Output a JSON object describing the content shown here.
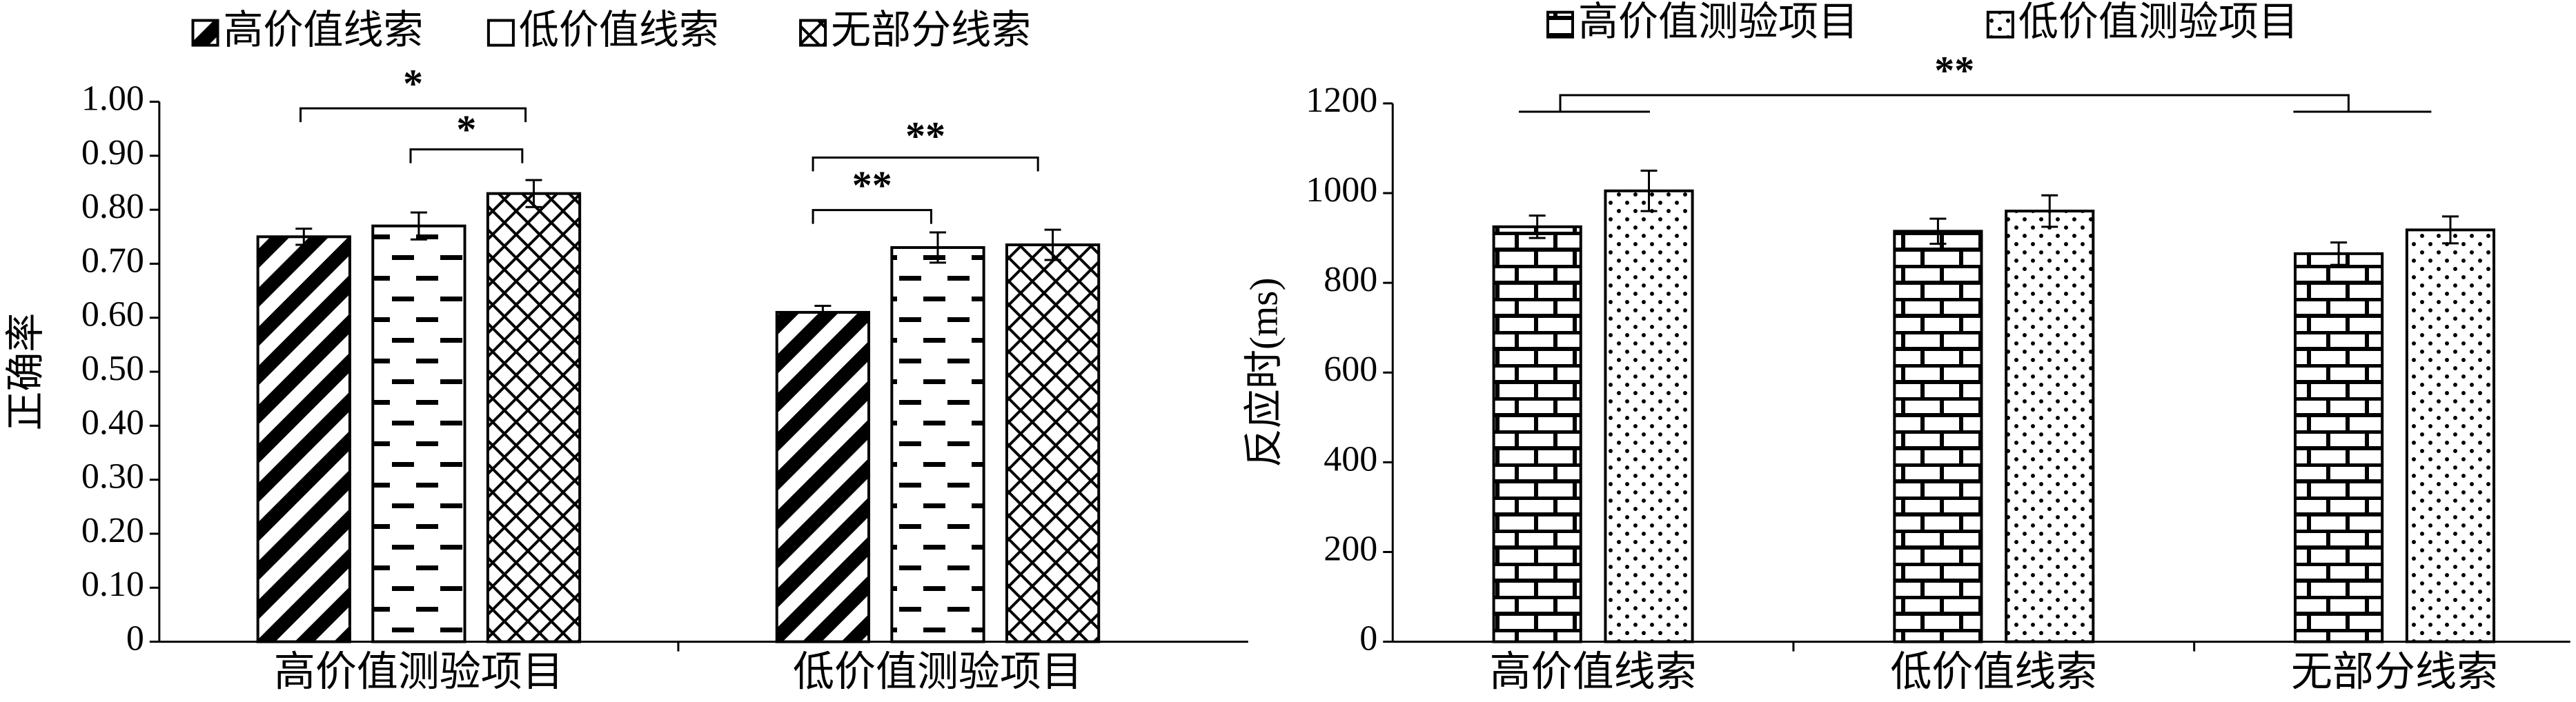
{
  "chart_data": [
    {
      "type": "bar",
      "y_label": "正确率",
      "categories": [
        "高价值测验项目",
        "低价值测验项目"
      ],
      "series": [
        {
          "name": "高价值线索",
          "pattern": "diagonal",
          "values": [
            0.75,
            0.61
          ],
          "errors": [
            0.015,
            0.012
          ]
        },
        {
          "name": "低价值线索",
          "pattern": "dashes",
          "values": [
            0.77,
            0.73
          ],
          "errors": [
            0.025,
            0.028
          ]
        },
        {
          "name": "无部分线索",
          "pattern": "crosshatch",
          "values": [
            0.83,
            0.735
          ],
          "errors": [
            0.025,
            0.028
          ]
        }
      ],
      "ylim": [
        0,
        1
      ],
      "yticks": [
        0,
        {
          "value": 0.1,
          "label": "0.10"
        },
        {
          "value": 0.2,
          "label": "0.20"
        },
        {
          "value": 0.3,
          "label": "0.30"
        },
        {
          "value": 0.4,
          "label": "0.40"
        },
        {
          "value": 0.5,
          "label": "0.50"
        },
        {
          "value": 0.6,
          "label": "0.60"
        },
        {
          "value": 0.7,
          "label": "0.70"
        },
        {
          "value": 0.8,
          "label": "0.80"
        },
        {
          "value": 0.9,
          "label": "0.90"
        },
        {
          "value": 1,
          "label": "1.00"
        }
      ],
      "annotations": [
        {
          "text": "*"
        },
        {
          "text": "*"
        },
        {
          "text": "**"
        },
        {
          "text": "**"
        }
      ]
    },
    {
      "type": "bar",
      "y_label": "反应时(ms)",
      "categories": [
        "高价值线索",
        "低价值线索",
        "无部分线索"
      ],
      "series": [
        {
          "name": "高价值测验项目",
          "pattern": "brick",
          "values": [
            925,
            915,
            865
          ],
          "errors": [
            25,
            28,
            25
          ]
        },
        {
          "name": "低价值测验项目",
          "pattern": "dots",
          "values": [
            1005,
            960,
            918
          ],
          "errors": [
            45,
            35,
            30
          ]
        }
      ],
      "ylim": [
        0,
        1200
      ],
      "yticks": [
        0,
        200,
        400,
        600,
        800,
        1000,
        1200
      ],
      "annotations": [
        {
          "text": "**"
        }
      ]
    }
  ]
}
